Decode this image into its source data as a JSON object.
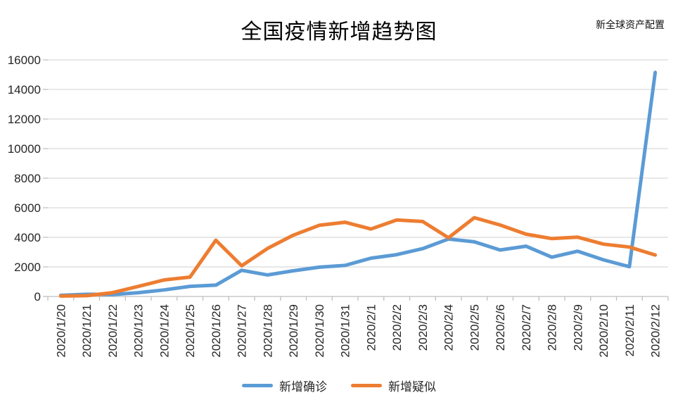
{
  "title": "全国疫情新增趋势图",
  "watermark": "新全球资产配置",
  "chart_data": {
    "type": "line",
    "title": "全国疫情新增趋势图",
    "xlabel": "",
    "ylabel": "",
    "categories": [
      "2020/1/20",
      "2020/1/21",
      "2020/1/22",
      "2020/1/23",
      "2020/1/24",
      "2020/1/25",
      "2020/1/26",
      "2020/1/27",
      "2020/1/28",
      "2020/1/29",
      "2020/1/30",
      "2020/1/31",
      "2020/2/1",
      "2020/2/2",
      "2020/2/3",
      "2020/2/4",
      "2020/2/5",
      "2020/2/6",
      "2020/2/7",
      "2020/2/8",
      "2020/2/9",
      "2020/2/10",
      "2020/2/11",
      "2020/2/12"
    ],
    "series": [
      {
        "name": "新增确诊",
        "color": "#5B9BD5",
        "values": [
          77,
          149,
          131,
          259,
          444,
          688,
          769,
          1771,
          1459,
          1737,
          1982,
          2102,
          2590,
          2829,
          3235,
          3887,
          3694,
          3143,
          3399,
          2656,
          3062,
          2478,
          2015,
          15152
        ]
      },
      {
        "name": "新增疑似",
        "color": "#ED7D31",
        "values": [
          27,
          53,
          257,
          680,
          1118,
          1309,
          3806,
          2077,
          3248,
          4148,
          4812,
          5019,
          4562,
          5173,
          5072,
          3971,
          5328,
          4833,
          4214,
          3916,
          4008,
          3536,
          3342,
          2807
        ]
      }
    ],
    "ylim": [
      0,
      16000
    ],
    "ytick_step": 2000,
    "ytick_labels": [
      "0",
      "2000",
      "4000",
      "6000",
      "8000",
      "10000",
      "12000",
      "14000",
      "16000"
    ],
    "grid": "horizontal",
    "legend_position": "bottom",
    "gridline_color": "#D9D9D9",
    "axis_color": "#BFBFBF",
    "text_color": "#262626",
    "background_color": "#FFFFFF"
  }
}
